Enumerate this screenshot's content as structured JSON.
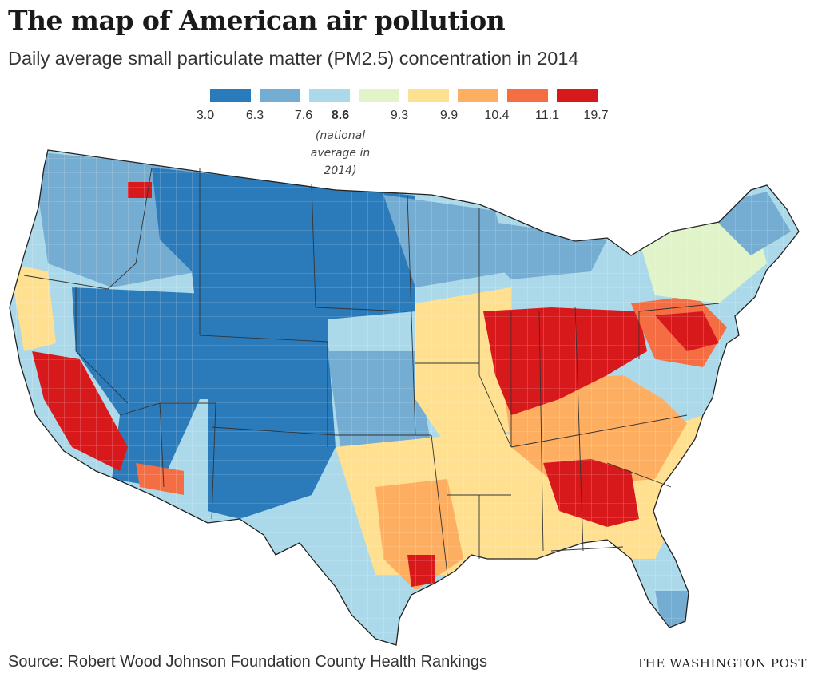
{
  "header": {
    "title": "The map of American air pollution",
    "subtitle": "Daily average small particulate matter (PM2.5) concentration in 2014"
  },
  "legend": {
    "colors": [
      "#2b7bba",
      "#74add1",
      "#abd9e9",
      "#e0f3c9",
      "#fee090",
      "#fdae61",
      "#f46d43",
      "#d7191c"
    ],
    "ticks": [
      "3.0",
      "6.3",
      "7.6",
      "8.6",
      "9.3",
      "9.9",
      "10.4",
      "11.1",
      "19.7"
    ],
    "average_note": "(national average in 2014)"
  },
  "map": {
    "scale": "choropleth by county",
    "colors": {
      "water": "#ffffff",
      "border": "#333333",
      "lowest": "#2b7bba",
      "highest": "#d7191c"
    }
  },
  "footer": {
    "source": "Source: Robert Wood Johnson Foundation County Health Rankings",
    "credit": "THE WASHINGTON POST"
  }
}
